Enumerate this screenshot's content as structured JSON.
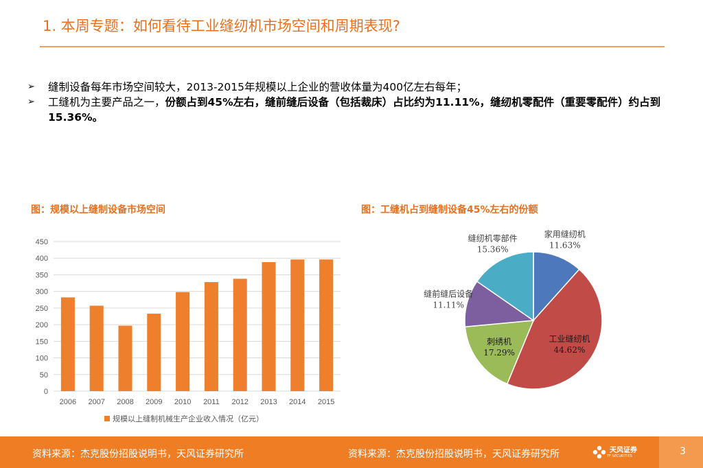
{
  "header": {
    "title": "1. 本周专题：如何看待工业缝纫机市场空间和周期表现?"
  },
  "bullets": {
    "marker": "➢",
    "b1": "缝制设备每年市场空间较大，2013-2015年规模以上企业的营收体量为400亿左右每年；",
    "b2_prefix": "工缝机为主要产品之一，",
    "b2_bold": "份额占到45%左右，缝前缝后设备（包括裁床）占比约为11.11%，缝纫机零配件（重要零配件）约占到15.36%。"
  },
  "figures": {
    "left_caption": "图：规模以上缝制设备市场空间",
    "right_caption": "图：工缝机占到缝制设备45%左右的份额"
  },
  "chart_data": [
    {
      "type": "bar",
      "title": "",
      "categories": [
        "2006",
        "2007",
        "2008",
        "2009",
        "2010",
        "2011",
        "2012",
        "2013",
        "2014",
        "2015"
      ],
      "values": [
        282,
        257,
        197,
        233,
        298,
        328,
        338,
        388,
        396,
        396
      ],
      "ylim": [
        0,
        450
      ],
      "yticks": [
        0,
        50,
        100,
        150,
        200,
        250,
        300,
        350,
        400,
        450
      ],
      "legend": "规模以上缝制机械生产企业收入情况（亿元）",
      "legend_position": "bottom",
      "color": "#ee7f2d",
      "grid": true
    },
    {
      "type": "pie",
      "slices": [
        {
          "label": "家用缝纫机",
          "value": 11.63,
          "text": "11.63%",
          "color": "#4d79bc"
        },
        {
          "label": "工业缝纫机",
          "value": 44.62,
          "text": "44.62%",
          "color": "#c04b47"
        },
        {
          "label": "刺绣机",
          "value": 17.29,
          "text": "17.29%",
          "color": "#9bbb59"
        },
        {
          "label": "缝前缝后设备",
          "value": 11.11,
          "text": "11.11%",
          "color": "#7d5fa0"
        },
        {
          "label": "缝纫机零部件",
          "value": 15.36,
          "text": "15.36%",
          "color": "#4bacc6"
        }
      ]
    }
  ],
  "footer": {
    "source_left": "资料来源：杰克股份招股说明书，天风证券研究所",
    "source_right": "资料来源：杰克股份招股说明书，天风证券研究所",
    "logo_text": "天风证券",
    "logo_sub": "TF SECURITIES",
    "page_number": "3"
  }
}
